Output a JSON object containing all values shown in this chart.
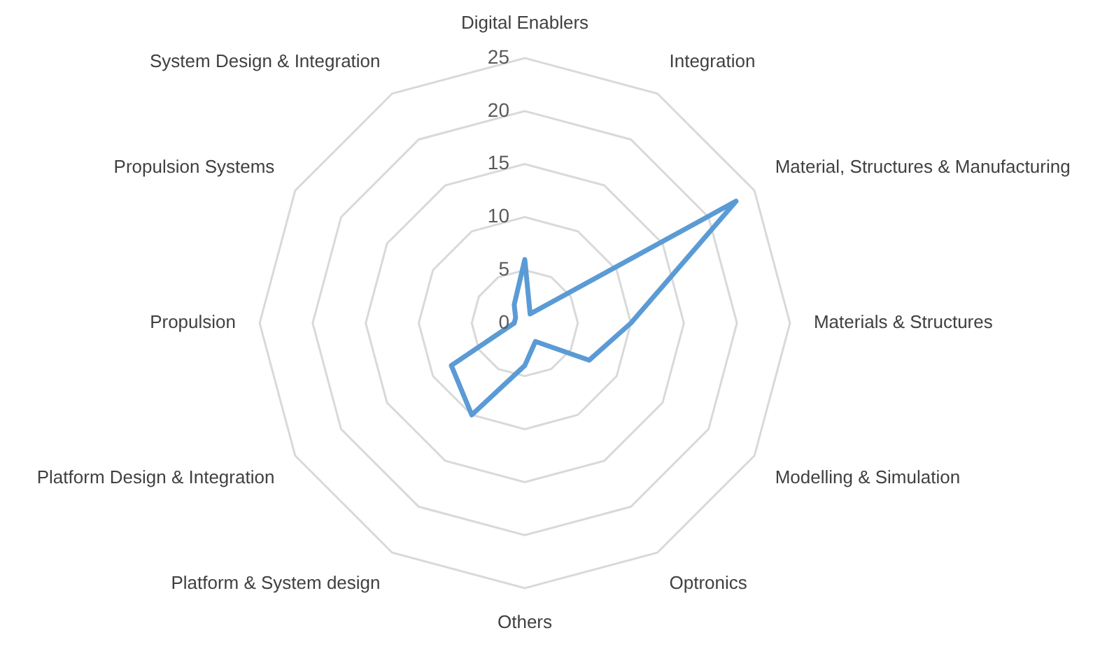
{
  "chart_data": {
    "type": "radar",
    "categories": [
      "Digital Enablers",
      "Integration",
      "Material, Structures & Manufacturing",
      "Materials & Structures",
      "Modelling & Simulation",
      "Optronics",
      "Others",
      "Platform & System design",
      "Platform Design & Integration",
      "Propulsion",
      "Propulsion Systems",
      "System Design & Integration"
    ],
    "series": [
      {
        "color": "#5b9bd5",
        "values": [
          6,
          1,
          23,
          10,
          7,
          2,
          4,
          10,
          8,
          1,
          1,
          2
        ]
      }
    ],
    "ylim": [
      0,
      25
    ],
    "yticks": [
      0,
      5,
      10,
      15,
      20,
      25
    ],
    "grid": true,
    "legend": false,
    "marker": "none",
    "line_style": "solid"
  }
}
